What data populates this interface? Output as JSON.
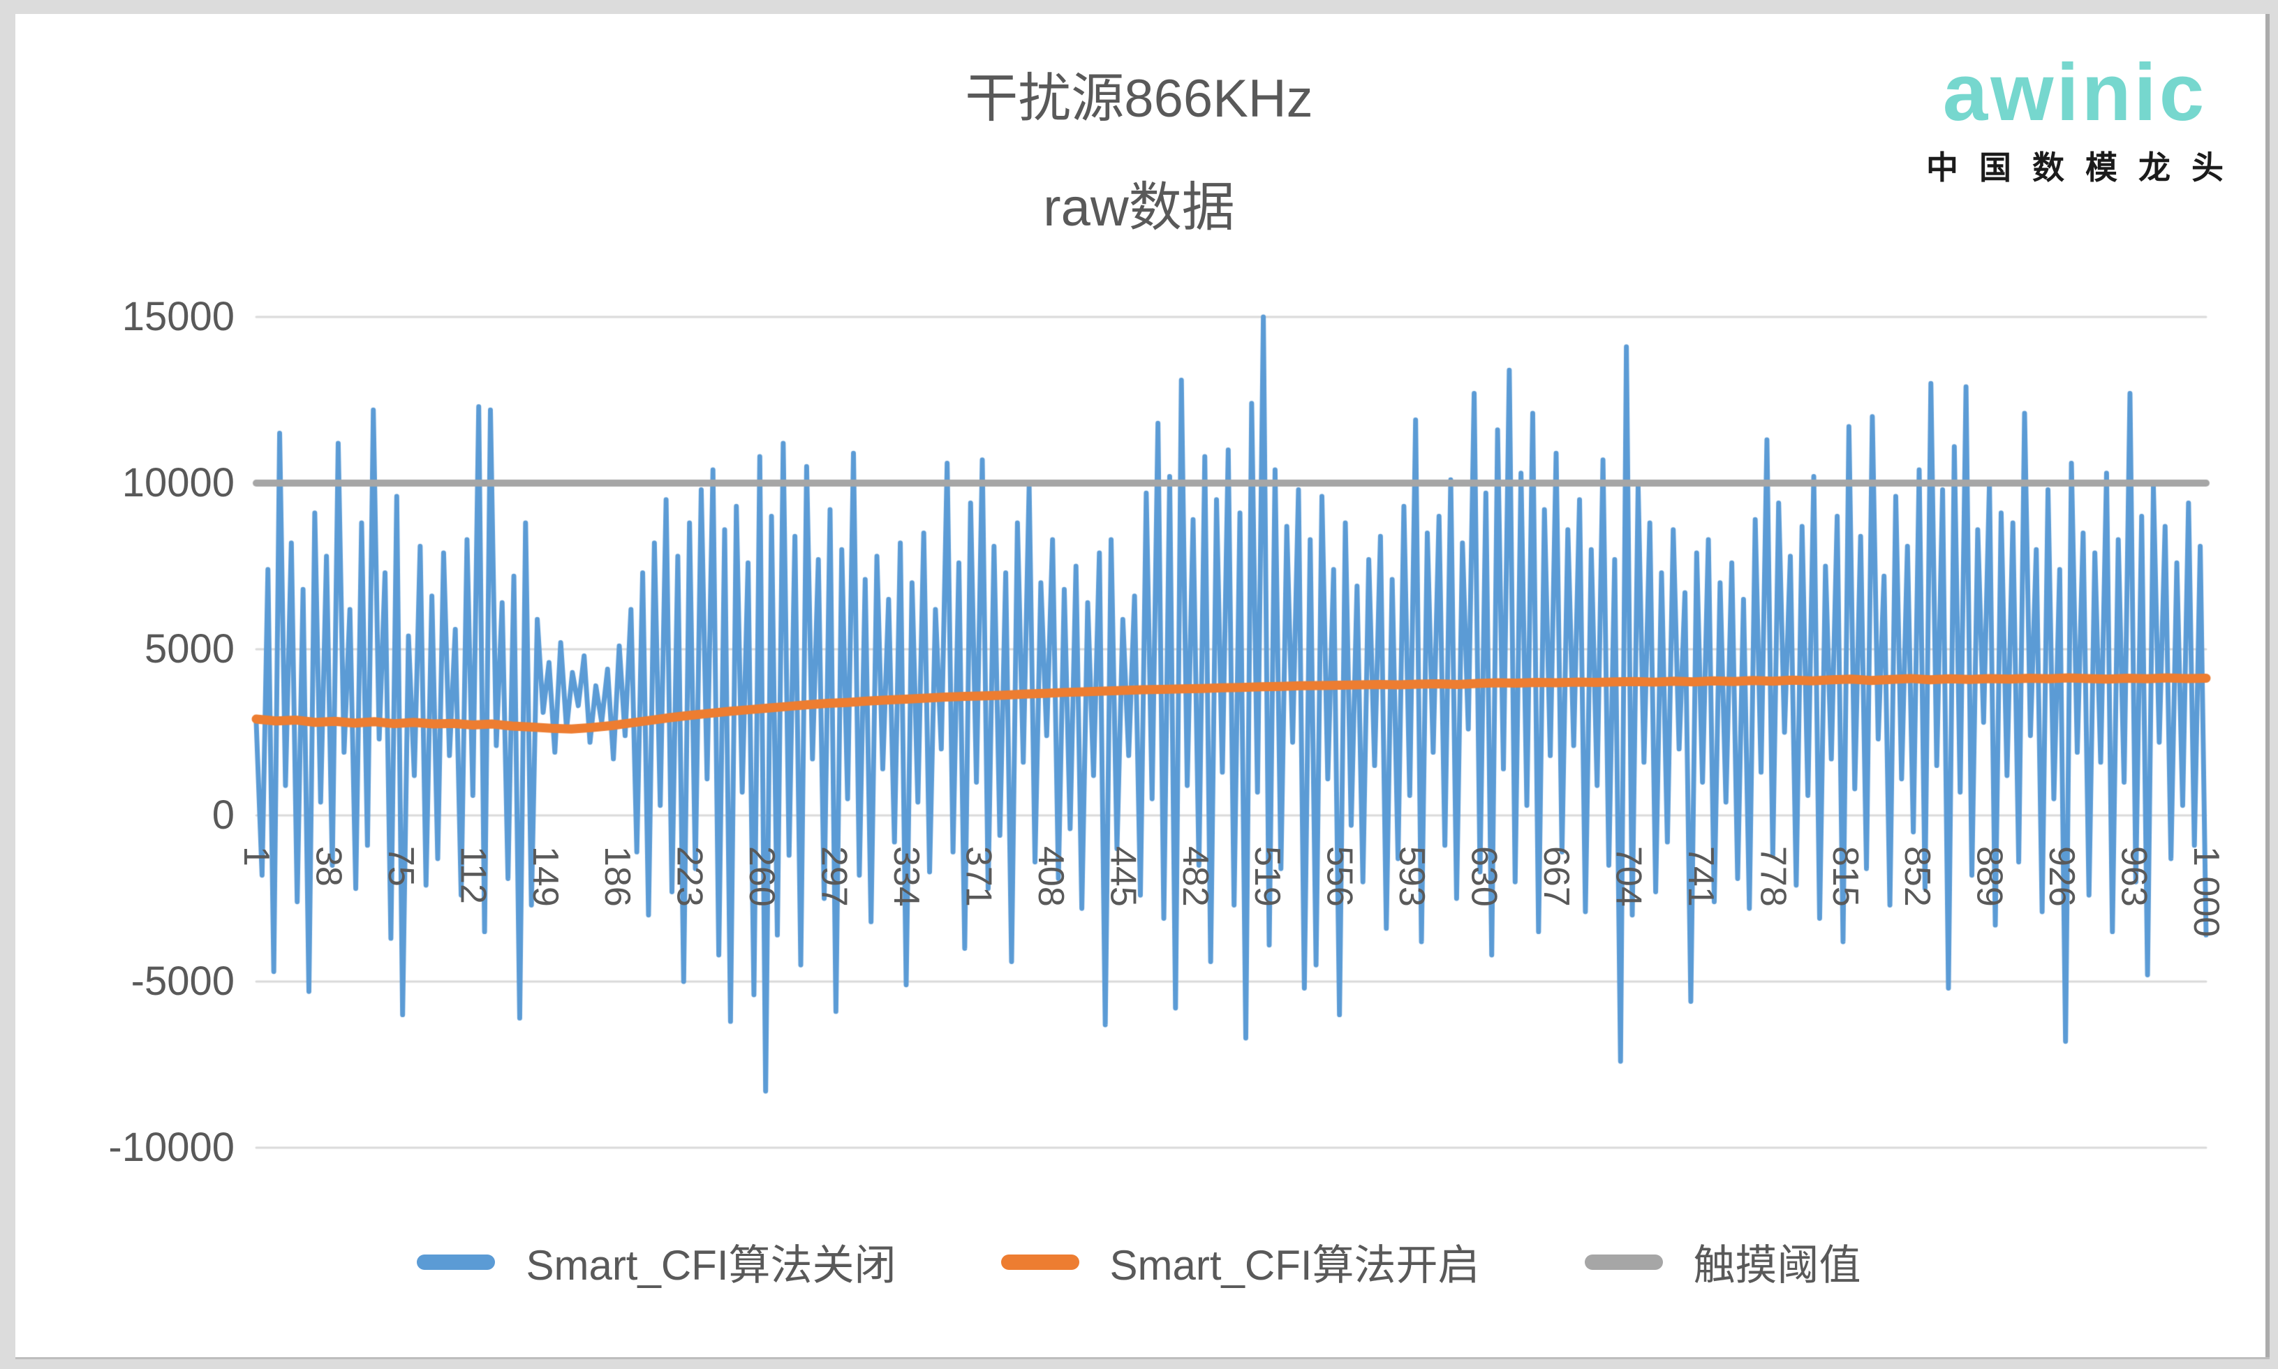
{
  "logo": {
    "brand": "awinic",
    "tagline": "中国数模龙头",
    "brand_color": "#76d7ce",
    "tagline_color": "#1b1b1b"
  },
  "window": {
    "frame_color": "#dcdcdc"
  },
  "chart_data": {
    "type": "line",
    "title": "干扰源866KHz",
    "subtitle": "raw数据",
    "xlabel": "",
    "ylabel": "",
    "x_range": [
      1,
      1000
    ],
    "x_tick_interval": 37,
    "ylim": [
      -10000,
      15000
    ],
    "grid": "horizontal-only",
    "gridline_color": "#d9d9d9",
    "axis_text_color": "#595959",
    "legend_position": "bottom",
    "background": "#ffffff",
    "y_ticks": [
      {
        "label": "15000",
        "value": 15000
      },
      {
        "label": "10000",
        "value": 10000
      },
      {
        "label": "5000",
        "value": 5000
      },
      {
        "label": "0",
        "value": 0
      },
      {
        "label": "-5000",
        "value": -5000
      },
      {
        "label": "-10000",
        "value": -10000
      }
    ],
    "x_ticks": [
      {
        "label": "1",
        "value": 1
      },
      {
        "label": "38",
        "value": 38
      },
      {
        "label": "75",
        "value": 75
      },
      {
        "label": "112",
        "value": 112
      },
      {
        "label": "149",
        "value": 149
      },
      {
        "label": "186",
        "value": 186
      },
      {
        "label": "223",
        "value": 223
      },
      {
        "label": "260",
        "value": 260
      },
      {
        "label": "297",
        "value": 297
      },
      {
        "label": "334",
        "value": 334
      },
      {
        "label": "371",
        "value": 371
      },
      {
        "label": "408",
        "value": 408
      },
      {
        "label": "445",
        "value": 445
      },
      {
        "label": "482",
        "value": 482
      },
      {
        "label": "519",
        "value": 519
      },
      {
        "label": "556",
        "value": 556
      },
      {
        "label": "593",
        "value": 593
      },
      {
        "label": "630",
        "value": 630
      },
      {
        "label": "667",
        "value": 667
      },
      {
        "label": "704",
        "value": 704
      },
      {
        "label": "741",
        "value": 741
      },
      {
        "label": "778",
        "value": 778
      },
      {
        "label": "815",
        "value": 815
      },
      {
        "label": "852",
        "value": 852
      },
      {
        "label": "889",
        "value": 889
      },
      {
        "label": "926",
        "value": 926
      },
      {
        "label": "963",
        "value": 963
      },
      {
        "label": "1 000",
        "value": 1000
      }
    ],
    "series": [
      {
        "name": "Smart_CFI算法关闭",
        "color": "#5b9bd5",
        "line_width": 7,
        "values": [
          2800,
          -1800,
          7400,
          -4700,
          11500,
          900,
          8200,
          -2600,
          6800,
          -5300,
          9100,
          400,
          7800,
          -1500,
          11200,
          1900,
          6200,
          -2200,
          8800,
          -900,
          12200,
          2300,
          7300,
          -3700,
          9600,
          -6000,
          5400,
          1200,
          8100,
          -2100,
          6600,
          -1300,
          7900,
          1800,
          5600,
          -2400,
          8300,
          600,
          12300,
          -3500,
          12200,
          2100,
          6400,
          -1900,
          7200,
          -6100,
          8800,
          -2700,
          5900,
          3100,
          4600,
          1900,
          5200,
          2600,
          4300,
          3300,
          4800,
          2200,
          3900,
          2800,
          4400,
          1700,
          5100,
          2400,
          6200,
          -1100,
          7300,
          -3000,
          8200,
          300,
          9500,
          -2300,
          7800,
          -5000,
          8800,
          -1600,
          9800,
          1100,
          10400,
          -4200,
          8600,
          -6200,
          9300,
          700,
          7600,
          -5400,
          10800,
          -8300,
          9000,
          -3600,
          11200,
          -1200,
          8400,
          -4500,
          10500,
          1700,
          7700,
          -2500,
          9200,
          -5900,
          8000,
          500,
          10900,
          -1800,
          7100,
          -3200,
          7800,
          1400,
          6500,
          -800,
          8200,
          -5100,
          7000,
          400,
          8500,
          -1700,
          6200,
          2000,
          10600,
          -1100,
          7600,
          -4000,
          9400,
          1000,
          10700,
          -2200,
          8100,
          -600,
          7300,
          -4400,
          8800,
          1600,
          9900,
          -1400,
          7000,
          2400,
          8300,
          -1900,
          6800,
          -400,
          7500,
          -2800,
          6400,
          1200,
          7900,
          -6300,
          8300,
          -1000,
          5900,
          1800,
          6600,
          -2400,
          9700,
          500,
          11800,
          -3100,
          10200,
          -5800,
          13100,
          900,
          8900,
          -1500,
          10800,
          -4400,
          9500,
          1300,
          11000,
          -2700,
          9100,
          -6700,
          12400,
          700,
          15000,
          -3900,
          10400,
          -1600,
          8700,
          2200,
          9800,
          -5200,
          8300,
          -4500,
          9600,
          1100,
          7400,
          -6000,
          8800,
          -300,
          6900,
          -2000,
          7700,
          1500,
          8400,
          -3400,
          7100,
          -1300,
          9300,
          600,
          11900,
          -3800,
          8500,
          1900,
          9000,
          -900,
          10100,
          -2500,
          8200,
          2600,
          12700,
          -1700,
          9700,
          -4200,
          11600,
          1400,
          13400,
          -2000,
          10300,
          300,
          12100,
          -3500,
          9200,
          1800,
          10900,
          -1100,
          8600,
          2100,
          9500,
          -2900,
          8000,
          900,
          10700,
          -1500,
          7700,
          -7400,
          14100,
          -3000,
          9900,
          1600,
          8800,
          -2300,
          7300,
          -800,
          8600,
          2000,
          6700,
          -5600,
          7900,
          1000,
          8300,
          -2600,
          7000,
          400,
          7600,
          -1900,
          6500,
          -2800,
          8900,
          1300,
          11300,
          -1200,
          9400,
          2500,
          7800,
          -2100,
          8700,
          600,
          10200,
          -3100,
          7500,
          1700,
          9000,
          -3800,
          11700,
          800,
          8400,
          -1600,
          12000,
          2300,
          7200,
          -2700,
          9600,
          1100,
          8100,
          -500,
          10400,
          -2200,
          13000,
          1500,
          9800,
          -5200,
          11100,
          700,
          12900,
          -1800,
          8600,
          2800,
          10000,
          -3300,
          9100,
          1200,
          8800,
          -1400,
          12100,
          2400,
          8000,
          -2900,
          9800,
          500,
          7400,
          -6800,
          10600,
          1900,
          8500,
          -2400,
          7900,
          1600,
          10300,
          -3500,
          8300,
          1000,
          12700,
          -2000,
          9000,
          -4800,
          9900,
          2200,
          8700,
          -1300,
          7600,
          300,
          9400,
          -900,
          8100,
          -3600
        ]
      },
      {
        "name": "Smart_CFI算法开启",
        "color": "#ed7d31",
        "line_width": 13,
        "values": [
          2900,
          2840,
          2870,
          2800,
          2830,
          2780,
          2820,
          2760,
          2800,
          2750,
          2770,
          2720,
          2750,
          2690,
          2660,
          2620,
          2600,
          2640,
          2700,
          2780,
          2860,
          2940,
          3010,
          3070,
          3130,
          3180,
          3230,
          3280,
          3330,
          3370,
          3400,
          3440,
          3470,
          3500,
          3530,
          3560,
          3580,
          3600,
          3620,
          3650,
          3670,
          3700,
          3720,
          3740,
          3760,
          3780,
          3790,
          3810,
          3820,
          3840,
          3850,
          3870,
          3880,
          3900,
          3910,
          3920,
          3930,
          3940,
          3930,
          3950,
          3960,
          3940,
          3970,
          3990,
          3980,
          4000,
          3990,
          4010,
          4000,
          4020,
          4030,
          4010,
          4040,
          4020,
          4050,
          4030,
          4060,
          4040,
          4070,
          4050,
          4080,
          4100,
          4060,
          4090,
          4120,
          4080,
          4110,
          4090,
          4120,
          4100,
          4130,
          4110,
          4140,
          4120,
          4100,
          4130,
          4110,
          4140,
          4120,
          4130
        ]
      },
      {
        "name": "触摸阈值",
        "color": "#a6a6a6",
        "line_width": 10,
        "constant": 10000
      }
    ]
  }
}
